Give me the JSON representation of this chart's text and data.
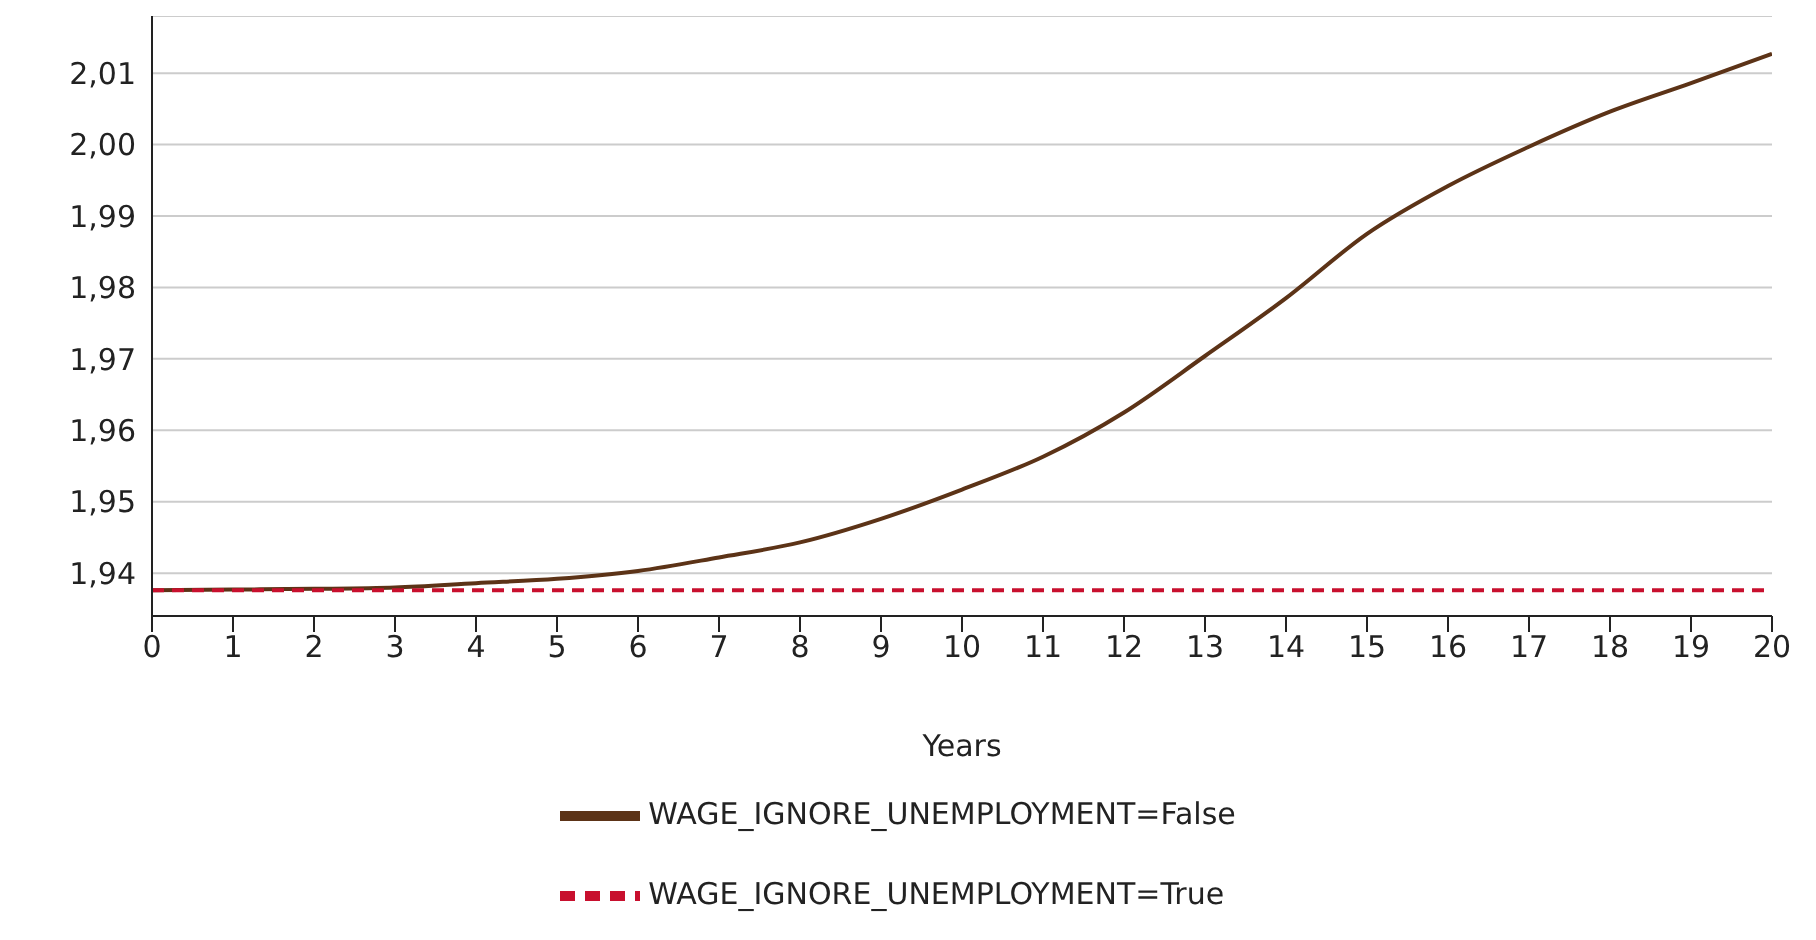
{
  "chart_data": {
    "type": "line",
    "xlabel": "Years",
    "x": [
      0,
      1,
      2,
      3,
      4,
      5,
      6,
      7,
      8,
      9,
      10,
      11,
      12,
      13,
      14,
      15,
      16,
      17,
      18,
      19,
      20
    ],
    "series": [
      {
        "name": "WAGE_IGNORE_UNEMPLOYMENT=False",
        "color": "#5c3317",
        "line_style": "solid",
        "values": [
          1.9376,
          1.9377,
          1.9378,
          1.938,
          1.9386,
          1.9392,
          1.9403,
          1.9422,
          1.9443,
          1.9476,
          1.9517,
          1.9563,
          1.9625,
          1.9704,
          1.9785,
          1.9875,
          1.9942,
          1.9997,
          2.0046,
          2.0086,
          2.0127
        ]
      },
      {
        "name": "WAGE_IGNORE_UNEMPLOYMENT=True",
        "color": "#c8102e",
        "line_style": "dashed",
        "values": [
          1.9376,
          1.9376,
          1.9376,
          1.9376,
          1.9376,
          1.9376,
          1.9376,
          1.9376,
          1.9376,
          1.9376,
          1.9376,
          1.9376,
          1.9376,
          1.9376,
          1.9376,
          1.9376,
          1.9376,
          1.9376,
          1.9376,
          1.9376,
          1.9376
        ]
      }
    ],
    "xlim": [
      0,
      20
    ],
    "xticks": [
      0,
      1,
      2,
      3,
      4,
      5,
      6,
      7,
      8,
      9,
      10,
      11,
      12,
      13,
      14,
      15,
      16,
      17,
      18,
      19,
      20
    ],
    "ylim": [
      1.934,
      2.018
    ],
    "yticks": [
      {
        "value": 1.94,
        "label": "1,94"
      },
      {
        "value": 1.95,
        "label": "1,95"
      },
      {
        "value": 1.96,
        "label": "1,96"
      },
      {
        "value": 1.97,
        "label": "1,97"
      },
      {
        "value": 1.98,
        "label": "1,98"
      },
      {
        "value": 1.99,
        "label": "1,99"
      },
      {
        "value": 2.0,
        "label": "2,00"
      },
      {
        "value": 2.01,
        "label": "2,01"
      }
    ],
    "grid": "y",
    "legend": "bottom",
    "marker": "none"
  }
}
